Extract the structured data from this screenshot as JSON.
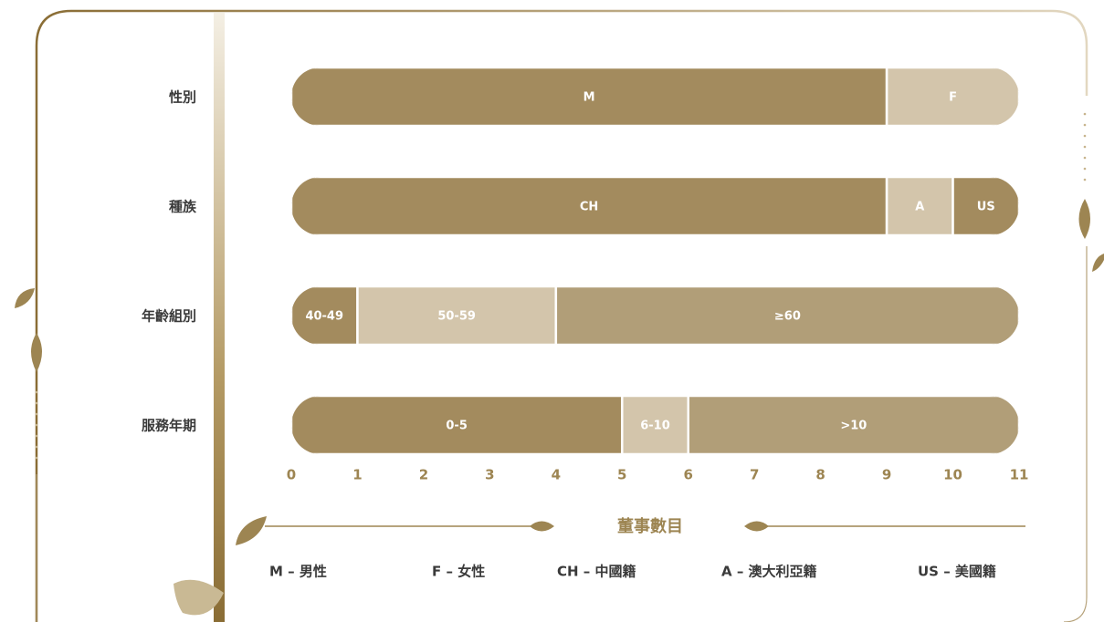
{
  "chart_data": {
    "type": "stacked-bar-horizontal",
    "bars": [
      {
        "category": "性別",
        "segments": [
          {
            "name": "M",
            "value": 9,
            "color": "#a38b5e"
          },
          {
            "name": "F",
            "value": 2,
            "color": "#d3c5ab"
          }
        ]
      },
      {
        "category": "種族",
        "segments": [
          {
            "name": "CH",
            "value": 9,
            "color": "#a38b5e"
          },
          {
            "name": "A",
            "value": 1,
            "color": "#d3c5ab"
          },
          {
            "name": "US",
            "value": 1,
            "color": "#a38b5e"
          }
        ]
      },
      {
        "category": "年齡組別",
        "segments": [
          {
            "name": "40-49",
            "value": 1,
            "color": "#a38b5e"
          },
          {
            "name": "50-59",
            "value": 3,
            "color": "#d3c5ab"
          },
          {
            "name": "≥60",
            "value": 7,
            "color": "#b19e78"
          }
        ]
      },
      {
        "category": "服務年期",
        "segments": [
          {
            "name": "0-5",
            "value": 5,
            "color": "#a38b5e"
          },
          {
            "name": "6-10",
            "value": 1,
            "color": "#d3c5ab"
          },
          {
            "name": ">10",
            "value": 5,
            "color": "#b19e78"
          }
        ]
      }
    ],
    "xlim": [
      0,
      11
    ],
    "xticks": [
      0,
      1,
      2,
      3,
      4,
      5,
      6,
      7,
      8,
      9,
      10,
      11
    ],
    "x_label": "董事數目",
    "legend": [
      "M – 男性",
      "F – 女性",
      "CH – 中國籍",
      "A – 澳大利亞籍",
      "US – 美國籍"
    ]
  }
}
